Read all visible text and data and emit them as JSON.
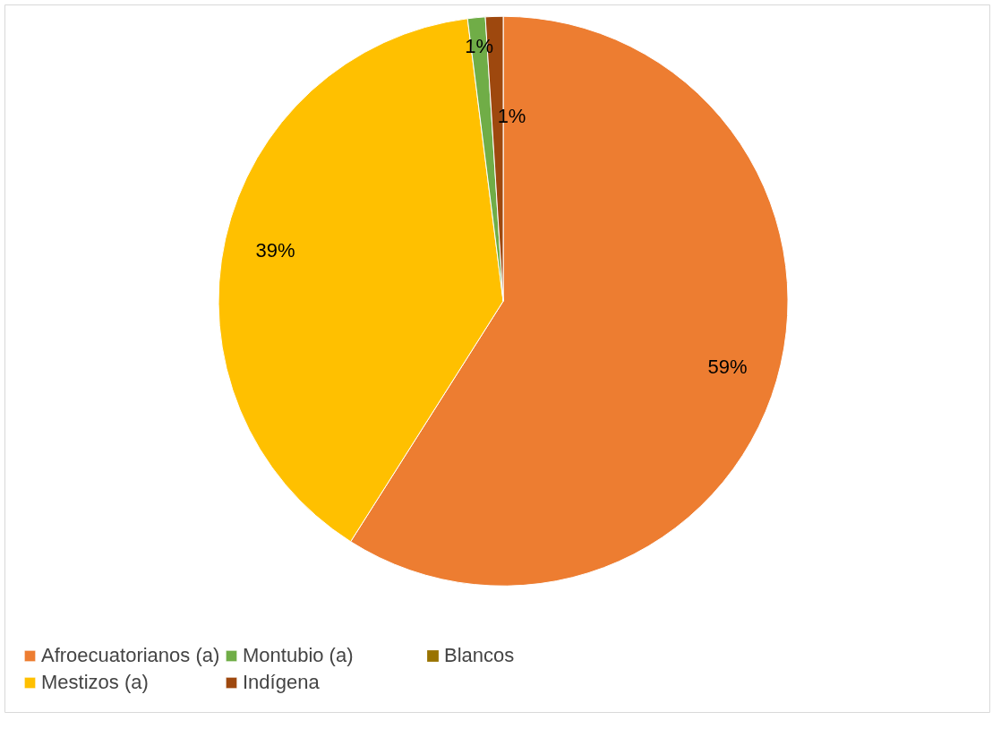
{
  "chart_data": {
    "type": "pie",
    "categories": [
      "Afroecuatorianos (a)",
      "Mestizos (a)",
      "Montubio (a)",
      "Indígena",
      "Blancos"
    ],
    "values": [
      59,
      39,
      1,
      1,
      0
    ],
    "colors": [
      "#ed7d31",
      "#ffc000",
      "#70ad47",
      "#9e480e",
      "#997300"
    ],
    "value_labels": [
      "59%",
      "39%",
      "1%",
      "1%",
      null
    ],
    "legend": "bottom"
  }
}
